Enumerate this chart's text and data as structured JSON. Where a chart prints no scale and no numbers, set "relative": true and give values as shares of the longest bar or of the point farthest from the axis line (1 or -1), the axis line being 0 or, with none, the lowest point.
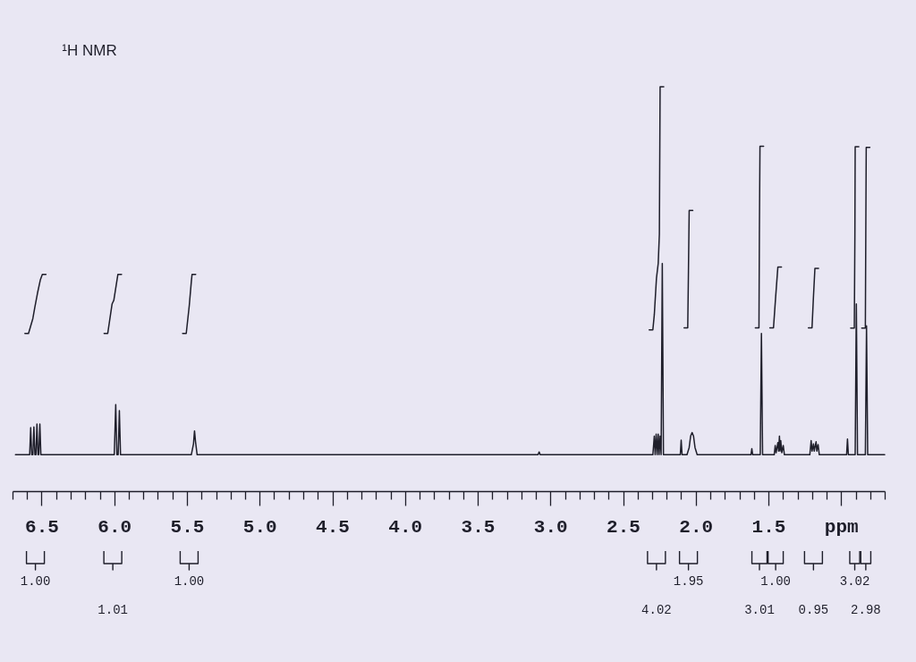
{
  "chart_data": {
    "type": "line",
    "title": "¹H NMR",
    "relative": true,
    "xlim": [
      6.7,
      0.7
    ],
    "xticks": [
      {
        "value": 6.7,
        "label": null
      },
      {
        "value": 6.6,
        "label": null
      },
      6.5,
      {
        "value": 6.4,
        "label": null
      },
      {
        "value": 6.3,
        "label": null
      },
      {
        "value": 6.2,
        "label": null
      },
      {
        "value": 6.1,
        "label": null
      },
      {
        "value": 6,
        "label": "6.0"
      },
      {
        "value": 5.9,
        "label": null
      },
      {
        "value": 5.8,
        "label": null
      },
      {
        "value": 5.7,
        "label": null
      },
      {
        "value": 5.6,
        "label": null
      },
      5.5,
      {
        "value": 5.4,
        "label": null
      },
      {
        "value": 5.3,
        "label": null
      },
      {
        "value": 5.2,
        "label": null
      },
      {
        "value": 5.1,
        "label": null
      },
      {
        "value": 5,
        "label": "5.0"
      },
      {
        "value": 4.9,
        "label": null
      },
      {
        "value": 4.8,
        "label": null
      },
      {
        "value": 4.7,
        "label": null
      },
      {
        "value": 4.6,
        "label": null
      },
      4.5,
      {
        "value": 4.4,
        "label": null
      },
      {
        "value": 4.3,
        "label": null
      },
      {
        "value": 4.2,
        "label": null
      },
      {
        "value": 4.1,
        "label": null
      },
      {
        "value": 4,
        "label": "4.0"
      },
      {
        "value": 3.9,
        "label": null
      },
      {
        "value": 3.8,
        "label": null
      },
      {
        "value": 3.7,
        "label": null
      },
      {
        "value": 3.6,
        "label": null
      },
      3.5,
      {
        "value": 3.4,
        "label": null
      },
      {
        "value": 3.3,
        "label": null
      },
      {
        "value": 3.2,
        "label": null
      },
      {
        "value": 3.1,
        "label": null
      },
      {
        "value": 3,
        "label": "3.0"
      },
      {
        "value": 2.9,
        "label": null
      },
      {
        "value": 2.8,
        "label": null
      },
      {
        "value": 2.7,
        "label": null
      },
      {
        "value": 2.6,
        "label": null
      },
      2.5,
      {
        "value": 2.4,
        "label": null
      },
      {
        "value": 2.3,
        "label": null
      },
      {
        "value": 2.2,
        "label": null
      },
      {
        "value": 2.1,
        "label": null
      },
      {
        "value": 2,
        "label": "2.0"
      },
      {
        "value": 1.9,
        "label": null
      },
      {
        "value": 1.8,
        "label": null
      },
      {
        "value": 1.7,
        "label": null
      },
      {
        "value": 1.6,
        "label": null
      },
      1.5,
      {
        "value": 1.4,
        "label": null
      },
      {
        "value": 1.3,
        "label": null
      },
      {
        "value": 1.2,
        "label": null
      },
      {
        "value": 1.1,
        "label": null
      },
      {
        "value": 1,
        "label": "ppm"
      },
      {
        "value": 0.9,
        "label": null
      },
      {
        "value": 0.8,
        "label": null
      },
      {
        "value": 0.7,
        "label": null
      }
    ],
    "series": [
      {
        "color": "#1e1e2a",
        "x": [
          6.68,
          6.582,
          6.575,
          6.568,
          6.56,
          6.553,
          6.546,
          6.539,
          6.532,
          6.525,
          6.519,
          6.512,
          6.505,
          6.0,
          5.99,
          5.982,
          5.973,
          5.965,
          5.957,
          5.47,
          5.455,
          5.448,
          5.441,
          5.43,
          3.085,
          3.077,
          3.07,
          2.295,
          2.285,
          2.279,
          2.272,
          2.265,
          2.258,
          2.252,
          2.245,
          2.238,
          2.23,
          2.222,
          2.106,
          2.1,
          2.094,
          2.06,
          2.045,
          2.035,
          2.025,
          2.015,
          2.005,
          1.99,
          1.62,
          1.614,
          1.608,
          1.556,
          1.548,
          1.54,
          1.46,
          1.453,
          1.447,
          1.435,
          1.43,
          1.424,
          1.42,
          1.415,
          1.408,
          1.398,
          1.39,
          1.215,
          1.206,
          1.2,
          1.19,
          1.185,
          1.172,
          1.167,
          1.158,
          1.15,
          0.962,
          0.956,
          0.95,
          0.903,
          0.895,
          0.887,
          0.833,
          0.825,
          0.817,
          0.7
        ],
        "values": [
          0.09,
          0.09,
          0.157,
          0.09,
          0.09,
          0.159,
          0.09,
          0.09,
          0.166,
          0.09,
          0.09,
          0.166,
          0.09,
          0.09,
          0.214,
          0.09,
          0.09,
          0.199,
          0.09,
          0.09,
          0.117,
          0.149,
          0.122,
          0.09,
          0.09,
          0.097,
          0.09,
          0.09,
          0.136,
          0.09,
          0.141,
          0.09,
          0.141,
          0.09,
          0.136,
          0.09,
          0.563,
          0.09,
          0.09,
          0.126,
          0.09,
          0.09,
          0.108,
          0.136,
          0.145,
          0.136,
          0.108,
          0.09,
          0.09,
          0.105,
          0.09,
          0.09,
          0.39,
          0.09,
          0.09,
          0.113,
          0.095,
          0.12,
          0.099,
          0.136,
          0.099,
          0.125,
          0.095,
          0.113,
          0.09,
          0.09,
          0.125,
          0.099,
          0.117,
          0.099,
          0.122,
          0.099,
          0.115,
          0.09,
          0.09,
          0.129,
          0.09,
          0.09,
          0.463,
          0.09,
          0.09,
          0.409,
          0.09,
          0.09
        ]
      },
      {
        "color": "#1e1e2a",
        "x": [
          6.615,
          6.59,
          6.56,
          6.547,
          6.528,
          6.509,
          6.495,
          6.47
        ],
        "values": [
          0.39,
          0.39,
          0.427,
          0.454,
          0.49,
          0.522,
          0.536,
          0.536
        ]
      },
      {
        "color": "#1e1e2a",
        "x": [
          6.07,
          6.045,
          6.015,
          6.003,
          5.975,
          5.95
        ],
        "values": [
          0.39,
          0.39,
          0.463,
          0.472,
          0.536,
          0.536
        ]
      },
      {
        "color": "#1e1e2a",
        "x": [
          5.53,
          5.505,
          5.484,
          5.47,
          5.465,
          5.44
        ],
        "values": [
          0.39,
          0.39,
          0.459,
          0.518,
          0.536,
          0.536
        ]
      },
      {
        "color": "#1e1e2a",
        "x": [
          2.32,
          2.295,
          2.285,
          2.27,
          2.258,
          2.25,
          2.245,
          2.22
        ],
        "values": [
          0.399,
          0.399,
          0.436,
          0.527,
          0.563,
          0.636,
          1.0,
          1.0
        ]
      },
      {
        "color": "#1e1e2a",
        "x": [
          2.08,
          2.055,
          2.05,
          2.045,
          2.02
        ],
        "values": [
          0.404,
          0.404,
          0.545,
          0.694,
          0.694
        ]
      },
      {
        "color": "#1e1e2a",
        "x": [
          1.59,
          1.565,
          1.562,
          1.558,
          1.533
        ],
        "values": [
          0.404,
          0.404,
          0.636,
          0.853,
          0.853
        ]
      },
      {
        "color": "#1e1e2a",
        "x": [
          1.49,
          1.465,
          1.45,
          1.435,
          1.41
        ],
        "values": [
          0.404,
          0.404,
          0.481,
          0.554,
          0.554
        ]
      },
      {
        "color": "#1e1e2a",
        "x": [
          1.225,
          1.2,
          1.19,
          1.18,
          1.155
        ],
        "values": [
          0.404,
          0.404,
          0.481,
          0.551,
          0.551
        ]
      },
      {
        "color": "#1e1e2a",
        "x": [
          0.934,
          0.909,
          0.905,
          0.903,
          0.878
        ],
        "values": [
          0.403,
          0.403,
          0.636,
          0.852,
          0.852
        ]
      },
      {
        "color": "#1e1e2a",
        "x": [
          0.858,
          0.833,
          0.83,
          0.827,
          0.802
        ],
        "values": [
          0.403,
          0.403,
          0.636,
          0.85,
          0.85
        ]
      }
    ],
    "annotations": [
      "1.00",
      "1.01",
      "1.00",
      "4.02",
      "1.95",
      "3.01",
      "1.00",
      "0.95",
      "3.02",
      "2.98"
    ]
  }
}
